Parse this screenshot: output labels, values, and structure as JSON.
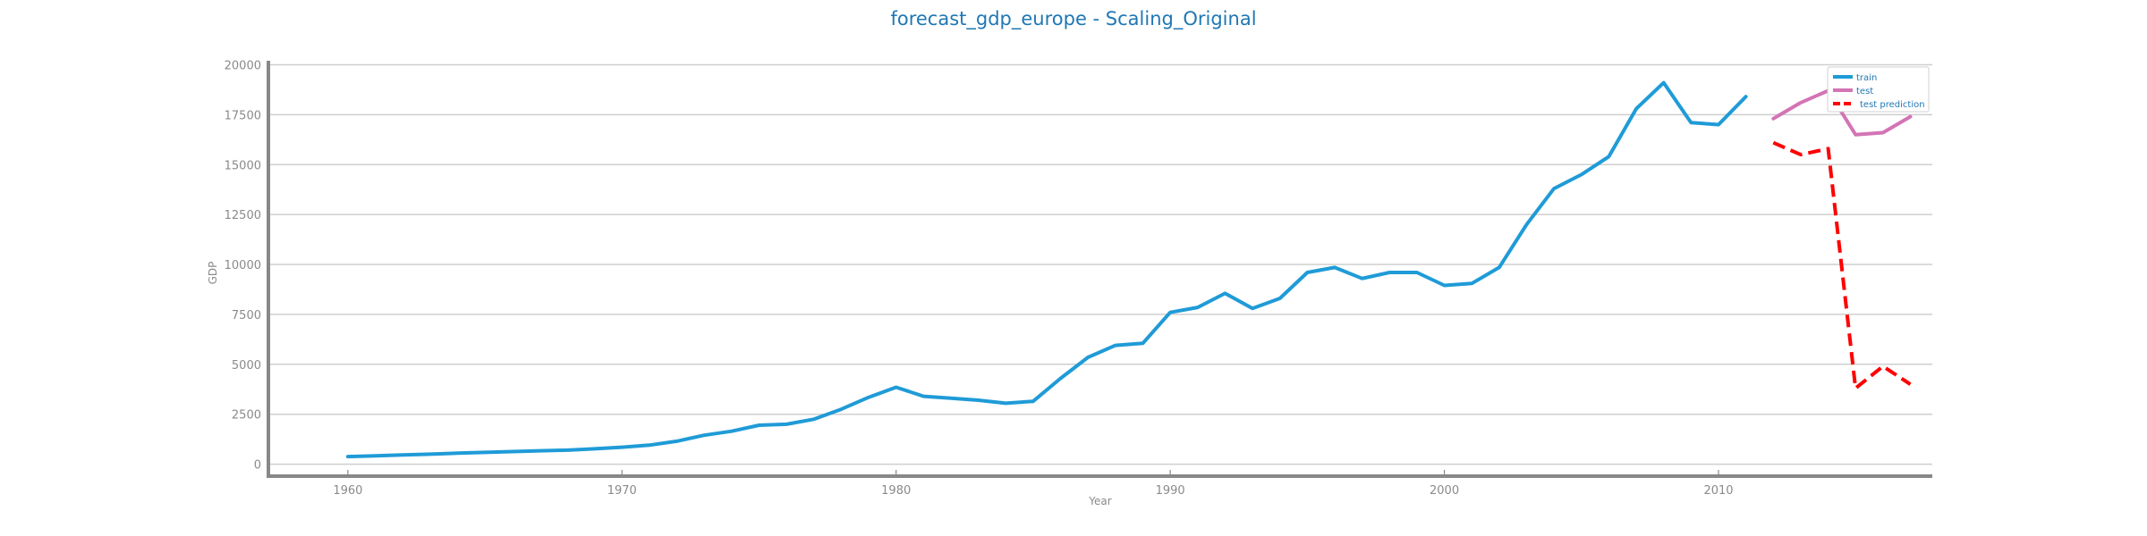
{
  "chart_data": {
    "type": "line",
    "title": "forecast_gdp_europe - Scaling_Original",
    "xlabel": "Year",
    "ylabel": "GDP",
    "xlim": [
      1957.1,
      2017.8
    ],
    "ylim": [
      -600,
      20200
    ],
    "grid": "horizontal",
    "legend_placement": "top-right",
    "x_ticks": [
      1960,
      1970,
      1980,
      1990,
      2000,
      2010
    ],
    "x_tick_labels": [
      "1960",
      "1970",
      "1980",
      "1990",
      "2000",
      "2010"
    ],
    "y_ticks": [
      0,
      2500,
      5000,
      7500,
      10000,
      12500,
      15000,
      17500,
      20000
    ],
    "y_tick_labels": [
      "0",
      "2500",
      "5000",
      "7500",
      "10000",
      "12500",
      "15000",
      "17500",
      "20000"
    ],
    "colors": {
      "title": "#1f77b4",
      "train": "#1f9bd7",
      "test": "#d374b5",
      "test_prediction": "#ff0000",
      "grid": "#cfcfcf",
      "axis": "#888888",
      "text": "#8a8a8a"
    },
    "series": [
      {
        "name": "train",
        "style": "solid",
        "x": [
          1960,
          1961,
          1962,
          1963,
          1964,
          1965,
          1966,
          1967,
          1968,
          1969,
          1970,
          1971,
          1972,
          1973,
          1974,
          1975,
          1976,
          1977,
          1978,
          1979,
          1980,
          1981,
          1982,
          1983,
          1984,
          1985,
          1986,
          1987,
          1988,
          1989,
          1990,
          1991,
          1992,
          1993,
          1994,
          1995,
          1996,
          1997,
          1998,
          1999,
          2000,
          2001,
          2002,
          2003,
          2004,
          2005,
          2006,
          2007,
          2008,
          2009,
          2010,
          2011
        ],
        "values": [
          380,
          420,
          460,
          500,
          550,
          590,
          630,
          670,
          700,
          770,
          850,
          950,
          1150,
          1450,
          1650,
          1950,
          2000,
          2250,
          2750,
          3350,
          3850,
          3400,
          3300,
          3200,
          3050,
          3150,
          4300,
          5350,
          5950,
          6050,
          7600,
          7850,
          8550,
          7800,
          8300,
          9600,
          9850,
          9300,
          9600,
          9600,
          8950,
          9050,
          9850,
          12000,
          13800,
          14500,
          15400,
          17800,
          19100,
          17100,
          17000,
          18400
        ]
      },
      {
        "name": "test",
        "style": "solid",
        "x": [
          2012,
          2013,
          2014,
          2015,
          2016,
          2017
        ],
        "values": [
          17300,
          18100,
          18700,
          16500,
          16600,
          17400
        ]
      },
      {
        "name": "test prediction",
        "style": "dashed",
        "x": [
          2012,
          2013,
          2014,
          2015,
          2016,
          2017
        ],
        "values": [
          16100,
          15500,
          15800,
          3800,
          4900,
          4000
        ]
      }
    ]
  }
}
